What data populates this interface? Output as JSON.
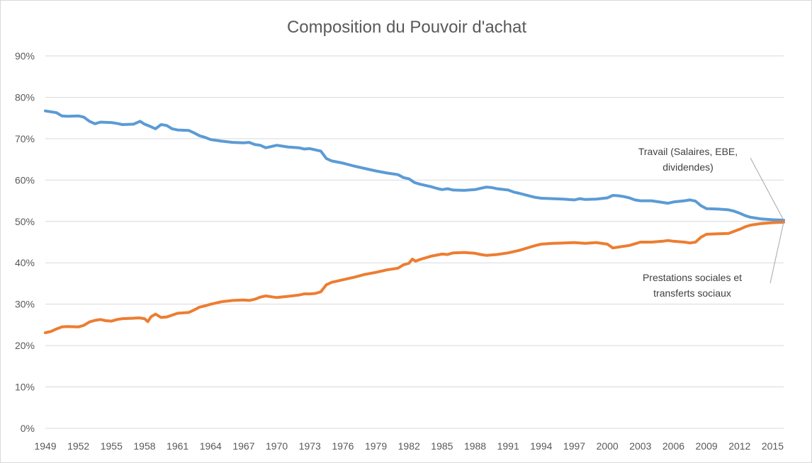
{
  "chart_data": {
    "type": "line",
    "title": "Composition du Pouvoir d'achat",
    "xlabel": "",
    "ylabel": "",
    "xlim": [
      1949,
      2016
    ],
    "ylim": [
      0,
      90
    ],
    "y_ticks": [
      "0%",
      "10%",
      "20%",
      "30%",
      "40%",
      "50%",
      "60%",
      "70%",
      "80%",
      "90%"
    ],
    "x_ticks": [
      "1949",
      "1952",
      "1955",
      "1958",
      "1961",
      "1964",
      "1967",
      "1970",
      "1973",
      "1976",
      "1979",
      "1982",
      "1985",
      "1988",
      "1991",
      "1994",
      "1997",
      "2000",
      "2003",
      "2006",
      "2009",
      "2012",
      "2015"
    ],
    "grid": true,
    "legend": "none",
    "series": [
      {
        "name": "Travail (Salaires, EBE, dividendes)",
        "label_lines": [
          "Travail (Salaires, EBE,",
          "dividendes)"
        ],
        "color": "#5b9bd5",
        "points": [
          [
            1949,
            76.7
          ],
          [
            1950,
            76.3
          ],
          [
            1950.5,
            75.5
          ],
          [
            1951,
            75.4
          ],
          [
            1952,
            75.5
          ],
          [
            1952.5,
            75.2
          ],
          [
            1953,
            74.2
          ],
          [
            1953.5,
            73.6
          ],
          [
            1954,
            74.0
          ],
          [
            1955,
            73.9
          ],
          [
            1955.5,
            73.7
          ],
          [
            1956,
            73.4
          ],
          [
            1957,
            73.5
          ],
          [
            1957.6,
            74.2
          ],
          [
            1958,
            73.5
          ],
          [
            1958.5,
            73.0
          ],
          [
            1959,
            72.4
          ],
          [
            1959.5,
            73.4
          ],
          [
            1960,
            73.2
          ],
          [
            1960.5,
            72.4
          ],
          [
            1961,
            72.1
          ],
          [
            1962,
            72.0
          ],
          [
            1962.5,
            71.4
          ],
          [
            1963,
            70.7
          ],
          [
            1963.5,
            70.3
          ],
          [
            1964,
            69.8
          ],
          [
            1965,
            69.4
          ],
          [
            1966,
            69.1
          ],
          [
            1967,
            69.0
          ],
          [
            1967.5,
            69.1
          ],
          [
            1968,
            68.6
          ],
          [
            1968.5,
            68.4
          ],
          [
            1969,
            67.8
          ],
          [
            1969.5,
            68.1
          ],
          [
            1970,
            68.4
          ],
          [
            1970.5,
            68.2
          ],
          [
            1971,
            68.0
          ],
          [
            1972,
            67.8
          ],
          [
            1972.5,
            67.5
          ],
          [
            1973,
            67.6
          ],
          [
            1973.5,
            67.3
          ],
          [
            1974,
            67.0
          ],
          [
            1974.5,
            65.2
          ],
          [
            1975,
            64.6
          ],
          [
            1976,
            64.1
          ],
          [
            1977,
            63.4
          ],
          [
            1978,
            62.8
          ],
          [
            1979,
            62.2
          ],
          [
            1980,
            61.7
          ],
          [
            1981,
            61.3
          ],
          [
            1981.5,
            60.6
          ],
          [
            1982,
            60.3
          ],
          [
            1982.5,
            59.4
          ],
          [
            1983,
            59.0
          ],
          [
            1984,
            58.4
          ],
          [
            1984.5,
            58.0
          ],
          [
            1985,
            57.7
          ],
          [
            1985.5,
            57.9
          ],
          [
            1986,
            57.6
          ],
          [
            1987,
            57.5
          ],
          [
            1988,
            57.7
          ],
          [
            1988.5,
            58.0
          ],
          [
            1989,
            58.3
          ],
          [
            1989.5,
            58.2
          ],
          [
            1990,
            57.9
          ],
          [
            1991,
            57.6
          ],
          [
            1991.5,
            57.1
          ],
          [
            1992,
            56.8
          ],
          [
            1993,
            56.1
          ],
          [
            1993.5,
            55.8
          ],
          [
            1994,
            55.6
          ],
          [
            1995,
            55.5
          ],
          [
            1996,
            55.4
          ],
          [
            1997,
            55.2
          ],
          [
            1997.5,
            55.5
          ],
          [
            1998,
            55.3
          ],
          [
            1999,
            55.4
          ],
          [
            2000,
            55.7
          ],
          [
            2000.5,
            56.3
          ],
          [
            2001,
            56.2
          ],
          [
            2001.5,
            56.0
          ],
          [
            2002,
            55.7
          ],
          [
            2002.5,
            55.2
          ],
          [
            2003,
            55.0
          ],
          [
            2004,
            55.0
          ],
          [
            2005,
            54.6
          ],
          [
            2005.5,
            54.4
          ],
          [
            2006,
            54.7
          ],
          [
            2007,
            55.0
          ],
          [
            2007.5,
            55.2
          ],
          [
            2008,
            54.9
          ],
          [
            2008.5,
            53.8
          ],
          [
            2009,
            53.1
          ],
          [
            2010,
            53.0
          ],
          [
            2011,
            52.8
          ],
          [
            2011.5,
            52.5
          ],
          [
            2012,
            52.0
          ],
          [
            2012.5,
            51.4
          ],
          [
            2013,
            51.0
          ],
          [
            2014,
            50.6
          ],
          [
            2015,
            50.4
          ],
          [
            2016,
            50.3
          ]
        ]
      },
      {
        "name": "Prestations sociales et transferts sociaux",
        "label_lines": [
          "Prestations sociales et",
          "transferts sociaux"
        ],
        "color": "#ed7d31",
        "points": [
          [
            1949,
            23.1
          ],
          [
            1949.5,
            23.4
          ],
          [
            1950,
            24.0
          ],
          [
            1950.5,
            24.5
          ],
          [
            1951,
            24.6
          ],
          [
            1952,
            24.5
          ],
          [
            1952.5,
            24.9
          ],
          [
            1953,
            25.7
          ],
          [
            1953.5,
            26.1
          ],
          [
            1954,
            26.3
          ],
          [
            1954.5,
            26.0
          ],
          [
            1955,
            25.9
          ],
          [
            1955.5,
            26.3
          ],
          [
            1956,
            26.5
          ],
          [
            1957,
            26.6
          ],
          [
            1957.5,
            26.7
          ],
          [
            1958,
            26.5
          ],
          [
            1958.3,
            25.8
          ],
          [
            1958.6,
            27.0
          ],
          [
            1959,
            27.6
          ],
          [
            1959.5,
            26.8
          ],
          [
            1960,
            26.9
          ],
          [
            1961,
            27.8
          ],
          [
            1962,
            28.0
          ],
          [
            1962.5,
            28.6
          ],
          [
            1963,
            29.3
          ],
          [
            1963.5,
            29.6
          ],
          [
            1964,
            30.0
          ],
          [
            1965,
            30.6
          ],
          [
            1966,
            30.9
          ],
          [
            1967,
            31.0
          ],
          [
            1967.5,
            30.9
          ],
          [
            1968,
            31.2
          ],
          [
            1968.5,
            31.7
          ],
          [
            1969,
            32.0
          ],
          [
            1970,
            31.6
          ],
          [
            1971,
            31.9
          ],
          [
            1972,
            32.2
          ],
          [
            1972.5,
            32.5
          ],
          [
            1973,
            32.5
          ],
          [
            1973.5,
            32.6
          ],
          [
            1974,
            33.0
          ],
          [
            1974.5,
            34.7
          ],
          [
            1975,
            35.3
          ],
          [
            1976,
            35.9
          ],
          [
            1977,
            36.5
          ],
          [
            1978,
            37.2
          ],
          [
            1979,
            37.7
          ],
          [
            1980,
            38.3
          ],
          [
            1981,
            38.7
          ],
          [
            1981.5,
            39.5
          ],
          [
            1982,
            39.9
          ],
          [
            1982.3,
            40.9
          ],
          [
            1982.6,
            40.4
          ],
          [
            1983,
            40.8
          ],
          [
            1984,
            41.6
          ],
          [
            1985,
            42.1
          ],
          [
            1985.5,
            42.0
          ],
          [
            1986,
            42.4
          ],
          [
            1987,
            42.5
          ],
          [
            1988,
            42.3
          ],
          [
            1988.5,
            42.0
          ],
          [
            1989,
            41.8
          ],
          [
            1990,
            42.0
          ],
          [
            1991,
            42.4
          ],
          [
            1992,
            43.0
          ],
          [
            1993,
            43.8
          ],
          [
            1993.5,
            44.2
          ],
          [
            1994,
            44.5
          ],
          [
            1995,
            44.7
          ],
          [
            1996,
            44.8
          ],
          [
            1997,
            44.9
          ],
          [
            1998,
            44.7
          ],
          [
            1999,
            44.9
          ],
          [
            2000,
            44.5
          ],
          [
            2000.5,
            43.6
          ],
          [
            2001,
            43.8
          ],
          [
            2002,
            44.2
          ],
          [
            2003,
            45.0
          ],
          [
            2004,
            45.0
          ],
          [
            2005,
            45.2
          ],
          [
            2005.5,
            45.4
          ],
          [
            2006,
            45.2
          ],
          [
            2007,
            45.0
          ],
          [
            2007.5,
            44.8
          ],
          [
            2008,
            45.0
          ],
          [
            2008.5,
            46.2
          ],
          [
            2009,
            46.9
          ],
          [
            2010,
            47.0
          ],
          [
            2011,
            47.1
          ],
          [
            2011.5,
            47.6
          ],
          [
            2012,
            48.1
          ],
          [
            2012.5,
            48.7
          ],
          [
            2013,
            49.1
          ],
          [
            2014,
            49.5
          ],
          [
            2015,
            49.7
          ],
          [
            2016,
            49.8
          ]
        ]
      }
    ]
  }
}
